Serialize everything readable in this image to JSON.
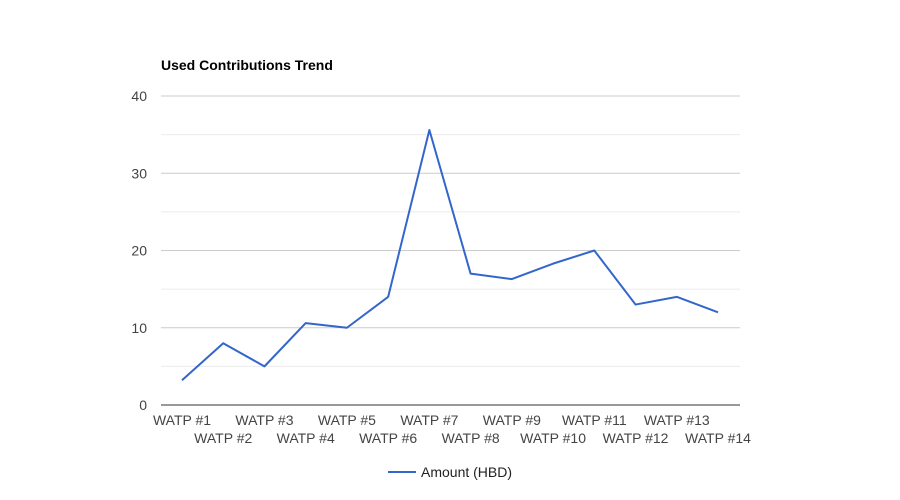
{
  "chart_data": {
    "type": "line",
    "title": "Used Contributions Trend",
    "categories": [
      "WATP #1",
      "WATP #2",
      "WATP #3",
      "WATP #4",
      "WATP #5",
      "WATP #6",
      "WATP #7",
      "WATP #8",
      "WATP #9",
      "WATP #10",
      "WATP #11",
      "WATP #12",
      "WATP #13",
      "WATP #14"
    ],
    "series": [
      {
        "name": "Amount (HBD)",
        "color": "#3366cc",
        "values": [
          3.2,
          8.0,
          5.0,
          10.6,
          10.0,
          14.0,
          35.6,
          17.0,
          16.3,
          18.3,
          20.0,
          13.0,
          14.0,
          12.0
        ]
      }
    ],
    "yticks": [
      0,
      10,
      20,
      30,
      40
    ],
    "ylim": [
      0,
      40
    ],
    "grid": true,
    "legend_position": "bottom"
  }
}
